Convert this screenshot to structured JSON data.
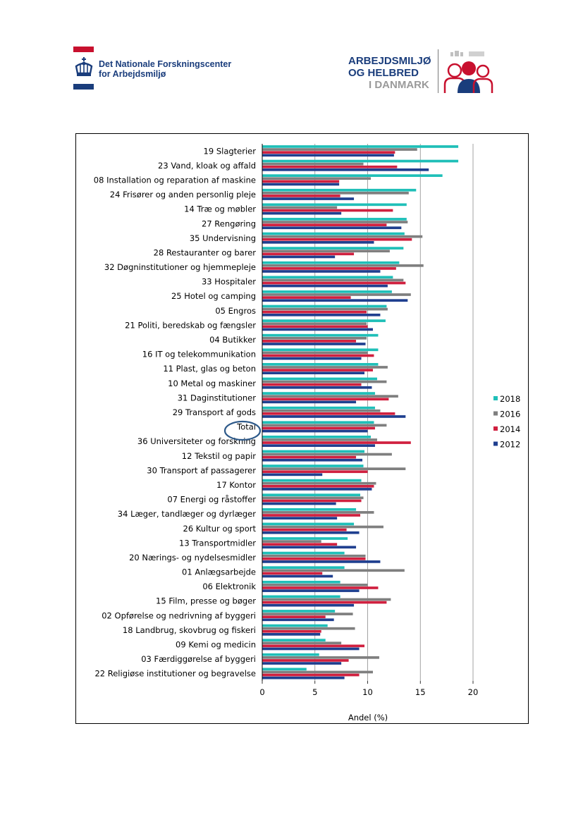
{
  "header": {
    "org_line1": "Det Nationale Forskningscenter",
    "org_line2": "for Arbejdsmiljø",
    "logo_line1": "ARBEJDSMILJØ",
    "logo_line2": "OG HELBRED",
    "logo_line3": "I DANMARK",
    "colors": {
      "navy": "#1a3d7c",
      "red": "#c8102e",
      "gray": "#9a9a9a"
    }
  },
  "chart_data": {
    "type": "bar",
    "orientation": "horizontal",
    "xlabel": "Andel (%)",
    "xlim": [
      0,
      20
    ],
    "xticks": [
      0,
      5,
      10,
      15,
      20
    ],
    "legend_position": "right",
    "highlighted_category": "Total",
    "categories": [
      "19 Slagterier",
      "23 Vand, kloak og affald",
      "08 Installation og reparation af maskine",
      "24 Frisører og anden personlig pleje",
      "14 Træ og møbler",
      "27 Rengøring",
      "35 Undervisning",
      "28 Restauranter og barer",
      "32 Døgninstitutioner og hjemmepleje",
      "33 Hospitaler",
      "25 Hotel og camping",
      "05 Engros",
      "21 Politi, beredskab og fængsler",
      "04 Butikker",
      "16 IT og telekommunikation",
      "11 Plast, glas og beton",
      "10 Metal og maskiner",
      "31 Daginstitutioner",
      "29 Transport af gods",
      "Total",
      "36 Universiteter og forskning",
      "12 Tekstil og papir",
      "30 Transport af passagerer",
      "17 Kontor",
      "07 Energi og råstoffer",
      "34 Læger, tandlæger og dyrlæger",
      "26 Kultur og sport",
      "13 Transportmidler",
      "20 Nærings- og nydelsesmidler",
      "01 Anlægsarbejde",
      "06 Elektronik",
      "15 Film, presse og bøger",
      "02 Opførelse og nedrivning af byggeri",
      "18 Landbrug, skovbrug og fiskeri",
      "09 Kemi og medicin",
      "03 Færdiggørelse af byggeri",
      "22 Religiøse institutioner og begravelse"
    ],
    "series": [
      {
        "name": "2018",
        "color": "#1fbfb8",
        "values": [
          18.6,
          18.6,
          17.1,
          14.6,
          13.7,
          13.7,
          13.5,
          13.4,
          13.0,
          12.4,
          12.3,
          11.8,
          11.7,
          11.0,
          11.0,
          11.0,
          10.9,
          10.7,
          10.7,
          10.6,
          10.3,
          9.7,
          9.6,
          9.4,
          9.3,
          8.9,
          8.7,
          8.1,
          7.8,
          7.8,
          7.4,
          7.4,
          6.9,
          6.2,
          6.0,
          5.4,
          4.2
        ]
      },
      {
        "name": "2016",
        "color": "#7f7f7f",
        "values": [
          14.7,
          9.6,
          10.3,
          13.9,
          7.1,
          13.8,
          15.2,
          12.1,
          15.3,
          13.4,
          14.1,
          11.9,
          9.9,
          9.9,
          10.0,
          11.9,
          11.8,
          12.9,
          11.2,
          11.8,
          10.9,
          12.3,
          13.6,
          10.8,
          9.6,
          10.6,
          11.5,
          5.6,
          9.8,
          13.5,
          10.0,
          12.2,
          8.6,
          8.8,
          7.5,
          11.1,
          10.5
        ]
      },
      {
        "name": "2014",
        "color": "#d0203f",
        "values": [
          12.6,
          12.8,
          7.3,
          7.4,
          12.4,
          11.8,
          14.2,
          8.7,
          12.7,
          13.6,
          8.4,
          9.9,
          10.0,
          8.9,
          10.6,
          10.5,
          9.4,
          12.0,
          12.6,
          10.7,
          14.1,
          8.9,
          10.0,
          10.6,
          9.4,
          9.3,
          8.0,
          7.1,
          9.8,
          5.7,
          11.0,
          11.8,
          6.0,
          5.6,
          9.7,
          8.2,
          9.2
        ]
      },
      {
        "name": "2012",
        "color": "#1f3f8f",
        "values": [
          12.5,
          15.8,
          7.3,
          8.7,
          7.5,
          13.2,
          10.6,
          6.9,
          11.2,
          11.9,
          13.8,
          11.2,
          10.5,
          9.8,
          9.4,
          9.7,
          10.4,
          8.9,
          13.6,
          10.0,
          10.7,
          9.5,
          5.7,
          10.4,
          7.0,
          7.1,
          9.2,
          8.9,
          11.2,
          6.7,
          9.2,
          8.7,
          6.8,
          5.5,
          9.2,
          7.5,
          7.8
        ]
      }
    ]
  }
}
